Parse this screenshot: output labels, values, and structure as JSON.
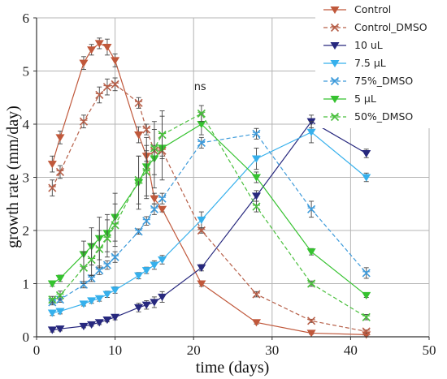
{
  "chart_data": {
    "type": "line",
    "xlabel": "time (days)",
    "ylabel": "growth rate (mm/day)",
    "xlim": [
      0,
      50
    ],
    "ylim": [
      0,
      6
    ],
    "xticks": [
      0,
      10,
      20,
      30,
      40,
      50
    ],
    "yticks": [
      0,
      1,
      2,
      3,
      4,
      5,
      6
    ],
    "grid": true,
    "legend_position": "top-right",
    "annotation": {
      "text": "ns",
      "x": 20,
      "y": 4.7
    },
    "series": [
      {
        "name": "Control",
        "color": "#c0583b",
        "dashed": false,
        "marker": "tri-down",
        "x": [
          2,
          3,
          6,
          7,
          8,
          9,
          10,
          13,
          14,
          15,
          16,
          21,
          28,
          35,
          42
        ],
        "y": [
          3.25,
          3.75,
          5.15,
          5.4,
          5.52,
          5.45,
          5.2,
          3.8,
          3.4,
          2.6,
          2.4,
          1.0,
          0.27,
          0.07,
          0.04
        ],
        "err": [
          0.15,
          0.12,
          0.12,
          0.1,
          0.1,
          0.15,
          0.12,
          0.15,
          0.1,
          0.1,
          0.05,
          0.05,
          0.03,
          0.02,
          0.02
        ]
      },
      {
        "name": "Control_DMSO",
        "color": "#b65f48",
        "dashed": true,
        "marker": "x",
        "x": [
          2,
          3,
          6,
          8,
          9,
          10,
          13,
          14,
          15,
          16,
          21,
          28,
          35,
          42
        ],
        "y": [
          2.8,
          3.1,
          4.05,
          4.55,
          4.7,
          4.75,
          4.4,
          3.9,
          3.5,
          3.5,
          2.0,
          0.8,
          0.3,
          0.1
        ],
        "err": [
          0.15,
          0.12,
          0.12,
          0.15,
          0.15,
          0.12,
          0.1,
          0.1,
          0.1,
          0.1,
          0.05,
          0.05,
          0.03,
          0.03
        ]
      },
      {
        "name": "10 uL",
        "color": "#27287e",
        "dashed": false,
        "marker": "tri-down",
        "x": [
          2,
          3,
          6,
          7,
          8,
          9,
          10,
          13,
          14,
          15,
          16,
          21,
          28,
          35,
          42
        ],
        "y": [
          0.13,
          0.15,
          0.2,
          0.23,
          0.27,
          0.32,
          0.37,
          0.55,
          0.6,
          0.65,
          0.75,
          1.3,
          2.65,
          4.05,
          3.45
        ],
        "err": [
          0.04,
          0.04,
          0.03,
          0.03,
          0.04,
          0.04,
          0.05,
          0.08,
          0.08,
          0.1,
          0.1,
          0.06,
          0.1,
          0.12,
          0.08
        ]
      },
      {
        "name": "7.5 μL",
        "color": "#36b0ec",
        "dashed": false,
        "marker": "tri-down",
        "x": [
          2,
          3,
          6,
          7,
          8,
          9,
          10,
          13,
          14,
          15,
          16,
          21,
          28,
          35,
          42
        ],
        "y": [
          0.45,
          0.48,
          0.62,
          0.68,
          0.72,
          0.8,
          0.88,
          1.15,
          1.25,
          1.35,
          1.45,
          2.2,
          3.35,
          3.85,
          3.0
        ],
        "err": [
          0.05,
          0.05,
          0.04,
          0.05,
          0.05,
          0.06,
          0.06,
          0.06,
          0.06,
          0.08,
          0.08,
          0.15,
          0.2,
          0.2,
          0.08
        ]
      },
      {
        "name": "75%_DMSO",
        "color": "#3e9bdb",
        "dashed": true,
        "marker": "x",
        "x": [
          2,
          3,
          6,
          7,
          8,
          9,
          10,
          13,
          14,
          15,
          16,
          21,
          28,
          35,
          42
        ],
        "y": [
          0.65,
          0.7,
          0.98,
          1.1,
          1.25,
          1.35,
          1.5,
          1.98,
          2.18,
          2.4,
          2.6,
          3.65,
          3.82,
          2.4,
          1.2
        ],
        "err": [
          0.05,
          0.05,
          0.06,
          0.06,
          0.08,
          0.08,
          0.1,
          0.05,
          0.08,
          0.1,
          0.1,
          0.1,
          0.1,
          0.15,
          0.1
        ]
      },
      {
        "name": "5 μL",
        "color": "#35c22f",
        "dashed": false,
        "marker": "tri-down",
        "x": [
          2,
          3,
          6,
          7,
          8,
          9,
          10,
          13,
          14,
          15,
          16,
          21,
          28,
          35,
          42
        ],
        "y": [
          1.0,
          1.1,
          1.55,
          1.7,
          1.85,
          1.95,
          2.25,
          2.9,
          3.2,
          3.35,
          3.55,
          4.0,
          3.0,
          1.6,
          0.78
        ],
        "err": [
          0.05,
          0.06,
          0.25,
          0.35,
          0.4,
          0.35,
          0.45,
          0.5,
          0.55,
          0.55,
          0.6,
          0.2,
          0.1,
          0.06,
          0.04
        ]
      },
      {
        "name": "50%_DMSO",
        "color": "#49bf3c",
        "dashed": true,
        "marker": "x",
        "x": [
          2,
          3,
          6,
          7,
          8,
          9,
          10,
          13,
          14,
          15,
          16,
          21,
          28,
          35,
          42
        ],
        "y": [
          0.7,
          0.78,
          1.3,
          1.45,
          1.65,
          1.85,
          2.1,
          2.95,
          3.1,
          3.55,
          3.8,
          4.2,
          2.45,
          1.0,
          0.37
        ],
        "err": [
          0.06,
          0.08,
          0.3,
          0.3,
          0.35,
          0.35,
          0.4,
          0.45,
          0.5,
          0.5,
          0.45,
          0.15,
          0.1,
          0.05,
          0.05
        ]
      }
    ]
  }
}
